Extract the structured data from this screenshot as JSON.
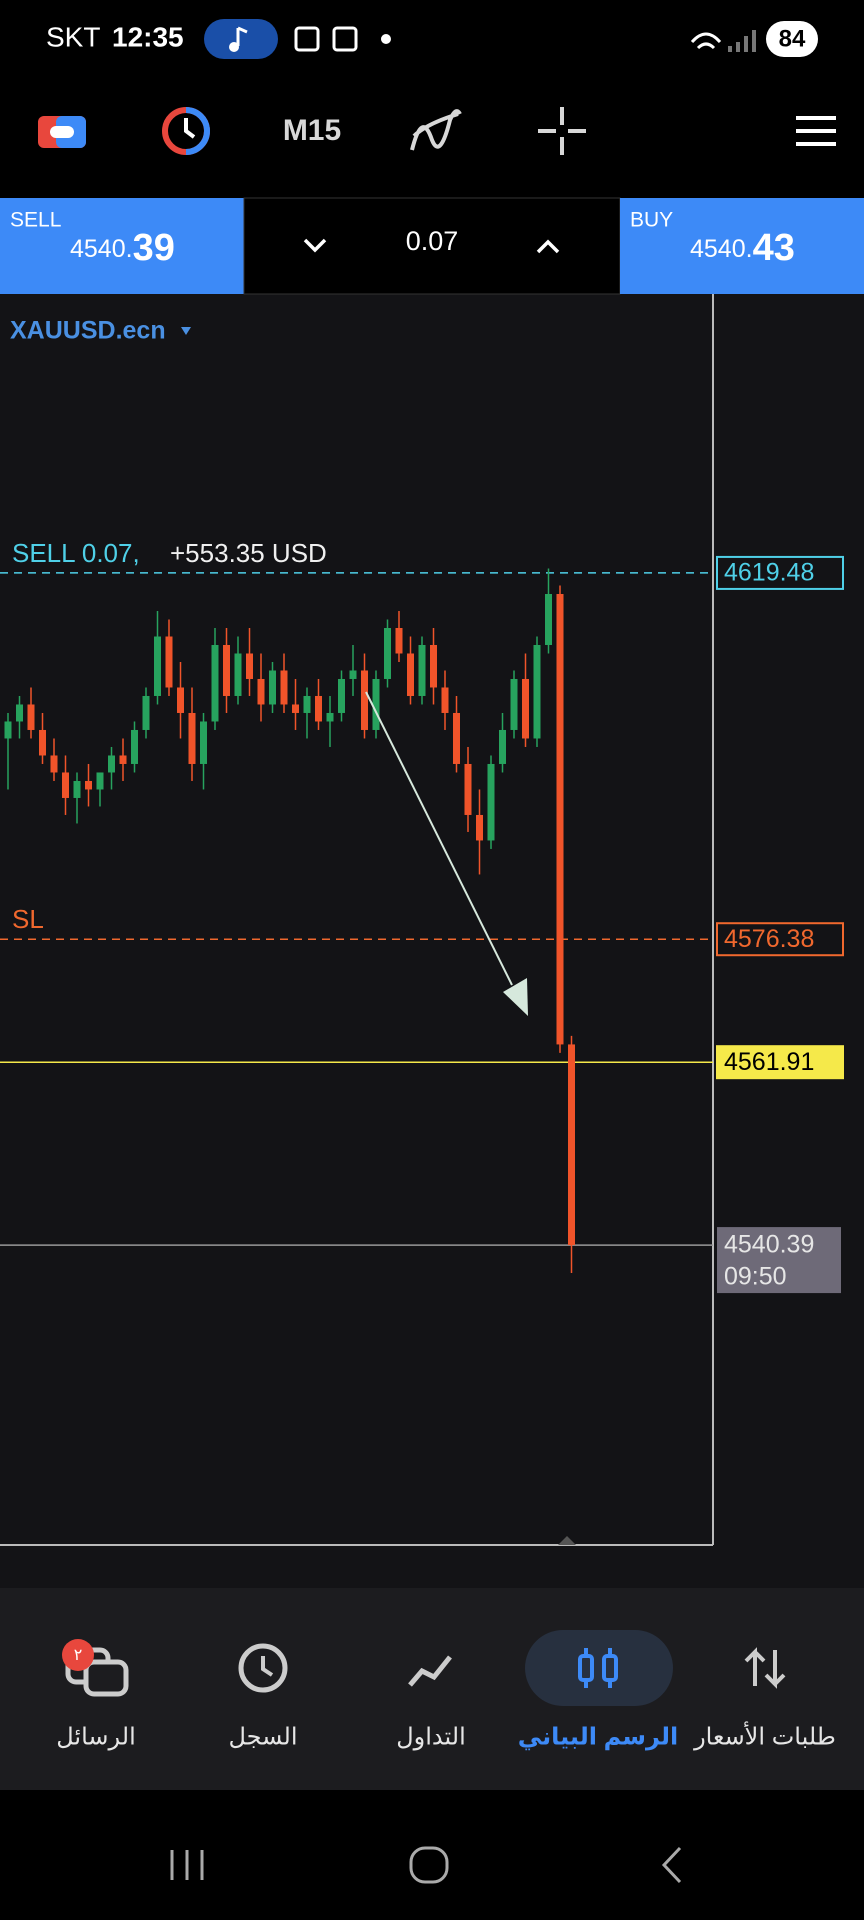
{
  "status_bar": {
    "carrier": "SKT",
    "time": "12:35",
    "battery": "84"
  },
  "toolbar": {
    "timeframe": "M15"
  },
  "trade_panel": {
    "sell": {
      "label": "SELL",
      "price_prefix": "4540.",
      "price_big": "39"
    },
    "volume": "0.07",
    "buy": {
      "label": "BUY",
      "price_prefix": "4540.",
      "price_big": "43"
    }
  },
  "chart_data": {
    "type": "candlestick",
    "symbol": "XAUUSD.ecn",
    "ylim": [
      4505.1,
      4652.3
    ],
    "up_color": "#27a35e",
    "down_color": "#f0542a",
    "open": [
      4600,
      4602,
      4604,
      4601,
      4598,
      4596,
      4593,
      4595,
      4594,
      4596,
      4598,
      4597,
      4601,
      4605,
      4612,
      4606,
      4603,
      4597,
      4602,
      4611,
      4605,
      4610,
      4607,
      4604,
      4608,
      4604,
      4603,
      4605,
      4602,
      4603,
      4607,
      4608,
      4601,
      4607,
      4613,
      4610,
      4605,
      4611,
      4606,
      4603,
      4597,
      4591,
      4588,
      4597,
      4601,
      4607,
      4600,
      4611,
      4617,
      4564
    ],
    "high": [
      4603,
      4605,
      4606,
      4603,
      4600,
      4598,
      4596,
      4597,
      4596,
      4599,
      4600,
      4602,
      4606,
      4615,
      4614,
      4609,
      4606,
      4603,
      4613,
      4613,
      4612,
      4613,
      4610,
      4609,
      4610,
      4607,
      4606,
      4607,
      4605,
      4608,
      4611,
      4610,
      4608,
      4614,
      4615,
      4612,
      4612,
      4613,
      4608,
      4605,
      4599,
      4594,
      4598,
      4603,
      4608,
      4610,
      4612,
      4620,
      4618,
      4565
    ],
    "low": [
      4594,
      4600,
      4600,
      4597,
      4595,
      4591,
      4590,
      4592,
      4592,
      4594,
      4595,
      4596,
      4600,
      4604,
      4605,
      4600,
      4595,
      4594,
      4601,
      4603,
      4604,
      4605,
      4602,
      4603,
      4603,
      4601,
      4600,
      4601,
      4599,
      4602,
      4605,
      4600,
      4600,
      4606,
      4609,
      4604,
      4604,
      4604,
      4601,
      4596,
      4589,
      4584,
      4587,
      4596,
      4600,
      4599,
      4599,
      4610,
      4563,
      4537.1
    ],
    "close": [
      4602,
      4604,
      4601,
      4598,
      4596,
      4593,
      4595,
      4594,
      4596,
      4598,
      4597,
      4601,
      4605,
      4612,
      4606,
      4603,
      4597,
      4602,
      4611,
      4605,
      4610,
      4607,
      4604,
      4608,
      4604,
      4603,
      4605,
      4602,
      4603,
      4607,
      4608,
      4601,
      4607,
      4613,
      4610,
      4605,
      4611,
      4606,
      4603,
      4597,
      4591,
      4588,
      4597,
      4601,
      4607,
      4600,
      4611,
      4617,
      4564,
      4540.39
    ],
    "position_level": 4619.48,
    "position_label": "SELL 0.07,",
    "position_profit": "+553.35 USD",
    "sl_level": 4576.38,
    "sl_label": "SL",
    "marker_level": 4561.91,
    "bid_level": 4540.39,
    "bid_time": "09:50"
  },
  "nav": {
    "badge": "٢",
    "items": [
      "الرسائل",
      "السجل",
      "التداول",
      "الرسم البياني",
      "طلبات الأسعار"
    ],
    "active": 3
  }
}
